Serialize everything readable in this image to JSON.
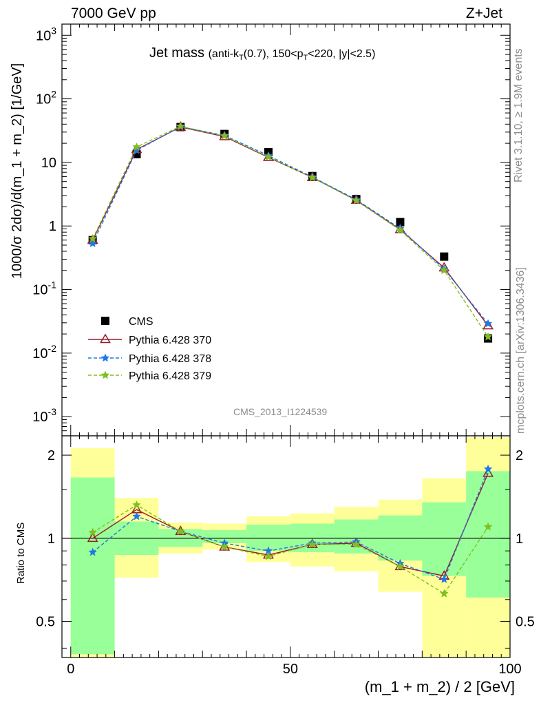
{
  "header": {
    "energy": "7000 GeV pp",
    "process": "Z+Jet"
  },
  "plot_title": {
    "main": "Jet mass",
    "detail_parts": [
      "(anti-k",
      "T",
      "(0.7), 150<p",
      "T",
      "<220, |y|<2.5)"
    ]
  },
  "watermark": "CMS_2013_I1224539",
  "side_labels": {
    "rivet_parts": [
      "Rivet 3.1.10, ",
      "≥",
      " 1.9M events"
    ],
    "mcplots": "mcplots.cern.ch [arXiv:1306.3436]"
  },
  "colors": {
    "cms": "#000000",
    "p370": "#9b1b2b",
    "p378": "#1f78e6",
    "p379": "#7fbf1f",
    "band_green": "#99ff99",
    "band_yellow": "#ffff99"
  },
  "chart_data": [
    {
      "type": "line",
      "title": "Jet mass (anti-kT(0.7), 150<pT<220, |y|<2.5)",
      "ylabel": "1000/σ 2dσ)/d(m_1 + m_2) [1/GeV]",
      "yscale": "log",
      "ylim": [
        0.0005,
        1500
      ],
      "xlim": [
        -2,
        100
      ],
      "ytick_labels": [
        "10^-3",
        "10^-2",
        "10^-1",
        "1",
        "10",
        "10^2",
        "10^3"
      ],
      "legend_position": "lower-left",
      "x": [
        5,
        15,
        25,
        35,
        45,
        55,
        65,
        75,
        85,
        95
      ],
      "series": [
        {
          "name": "CMS",
          "marker": "square",
          "values": [
            0.6,
            13.5,
            36,
            28,
            14.5,
            6.1,
            2.65,
            1.15,
            0.33,
            0.017
          ]
        },
        {
          "name": "Pythia 6.428 370",
          "marker": "triangle",
          "values": [
            0.6,
            16,
            36,
            25.5,
            12,
            5.8,
            2.55,
            0.88,
            0.22,
            0.027
          ]
        },
        {
          "name": "Pythia 6.428 378",
          "marker": "star",
          "values": [
            0.53,
            15.5,
            36.5,
            26.5,
            12.8,
            5.9,
            2.6,
            0.91,
            0.21,
            0.029
          ]
        },
        {
          "name": "Pythia 6.428 379",
          "marker": "star",
          "values": [
            0.63,
            17.5,
            37,
            26,
            12.2,
            5.75,
            2.5,
            0.86,
            0.2,
            0.018
          ]
        }
      ]
    },
    {
      "type": "line",
      "ylabel": "Ratio to CMS",
      "xlabel": "(m_1 + m_2) / 2 [GeV]",
      "yscale": "log",
      "ylim": [
        0.37,
        2.35
      ],
      "xlim": [
        -2,
        100
      ],
      "yticks": [
        0.5,
        1,
        2
      ],
      "ytick_labels": [
        "0.5",
        "1",
        "2"
      ],
      "xticks": [
        0,
        50,
        100
      ],
      "xtick_labels": [
        "0",
        "50",
        "100"
      ],
      "x": [
        5,
        15,
        25,
        35,
        45,
        55,
        65,
        75,
        85,
        95
      ],
      "bin_edges": [
        0,
        10,
        20,
        30,
        40,
        50,
        60,
        70,
        80,
        90,
        100
      ],
      "band_green": [
        [
          0.38,
          1.66
        ],
        [
          0.87,
          1.15
        ],
        [
          0.93,
          1.08
        ],
        [
          0.96,
          1.07
        ],
        [
          0.9,
          1.12
        ],
        [
          0.89,
          1.13
        ],
        [
          0.88,
          1.17
        ],
        [
          0.83,
          1.21
        ],
        [
          0.73,
          1.35
        ],
        [
          0.61,
          1.75
        ]
      ],
      "band_yellow": [
        [
          0.37,
          2.12
        ],
        [
          0.72,
          1.4
        ],
        [
          0.88,
          1.14
        ],
        [
          0.91,
          1.13
        ],
        [
          0.82,
          1.2
        ],
        [
          0.79,
          1.23
        ],
        [
          0.76,
          1.3
        ],
        [
          0.64,
          1.38
        ],
        [
          0.37,
          1.65
        ],
        [
          0.37,
          2.32
        ]
      ],
      "series": [
        {
          "name": "Pythia 6.428 370",
          "values": [
            1.0,
            1.27,
            1.06,
            0.93,
            0.87,
            0.95,
            0.96,
            0.79,
            0.73,
            1.72
          ]
        },
        {
          "name": "Pythia 6.428 378",
          "values": [
            0.89,
            1.2,
            1.06,
            0.96,
            0.9,
            0.96,
            0.97,
            0.81,
            0.71,
            1.78
          ]
        },
        {
          "name": "Pythia 6.428 379",
          "values": [
            1.05,
            1.32,
            1.06,
            0.93,
            0.86,
            0.95,
            0.95,
            0.79,
            0.63,
            1.1
          ]
        }
      ]
    }
  ]
}
